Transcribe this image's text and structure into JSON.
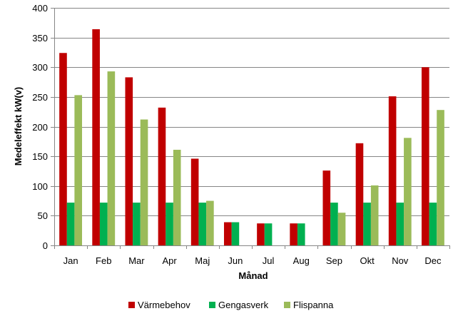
{
  "chart_data": {
    "type": "bar",
    "title": "",
    "xlabel": "Månad",
    "ylabel": "Medeleffekt kW(v)",
    "ylim": [
      0,
      400
    ],
    "yticks": [
      0,
      50,
      100,
      150,
      200,
      250,
      300,
      350,
      400
    ],
    "grid": "horizontal major",
    "legend_position": "bottom",
    "categories": [
      "Jan",
      "Feb",
      "Mar",
      "Apr",
      "Maj",
      "Jun",
      "Jul",
      "Aug",
      "Sep",
      "Okt",
      "Nov",
      "Dec"
    ],
    "series": [
      {
        "name": "Värmebehov",
        "color": "#c00000",
        "values": [
          324,
          364,
          283,
          232,
          146,
          39,
          37,
          37,
          126,
          172,
          251,
          300
        ]
      },
      {
        "name": "Gengasverk",
        "color": "#00b050",
        "values": [
          72,
          72,
          72,
          72,
          72,
          39,
          37,
          37,
          72,
          72,
          72,
          72
        ]
      },
      {
        "name": "Flispanna",
        "color": "#9bbb59",
        "values": [
          253,
          293,
          212,
          161,
          75,
          0,
          0,
          0,
          55,
          101,
          181,
          228
        ]
      }
    ]
  }
}
